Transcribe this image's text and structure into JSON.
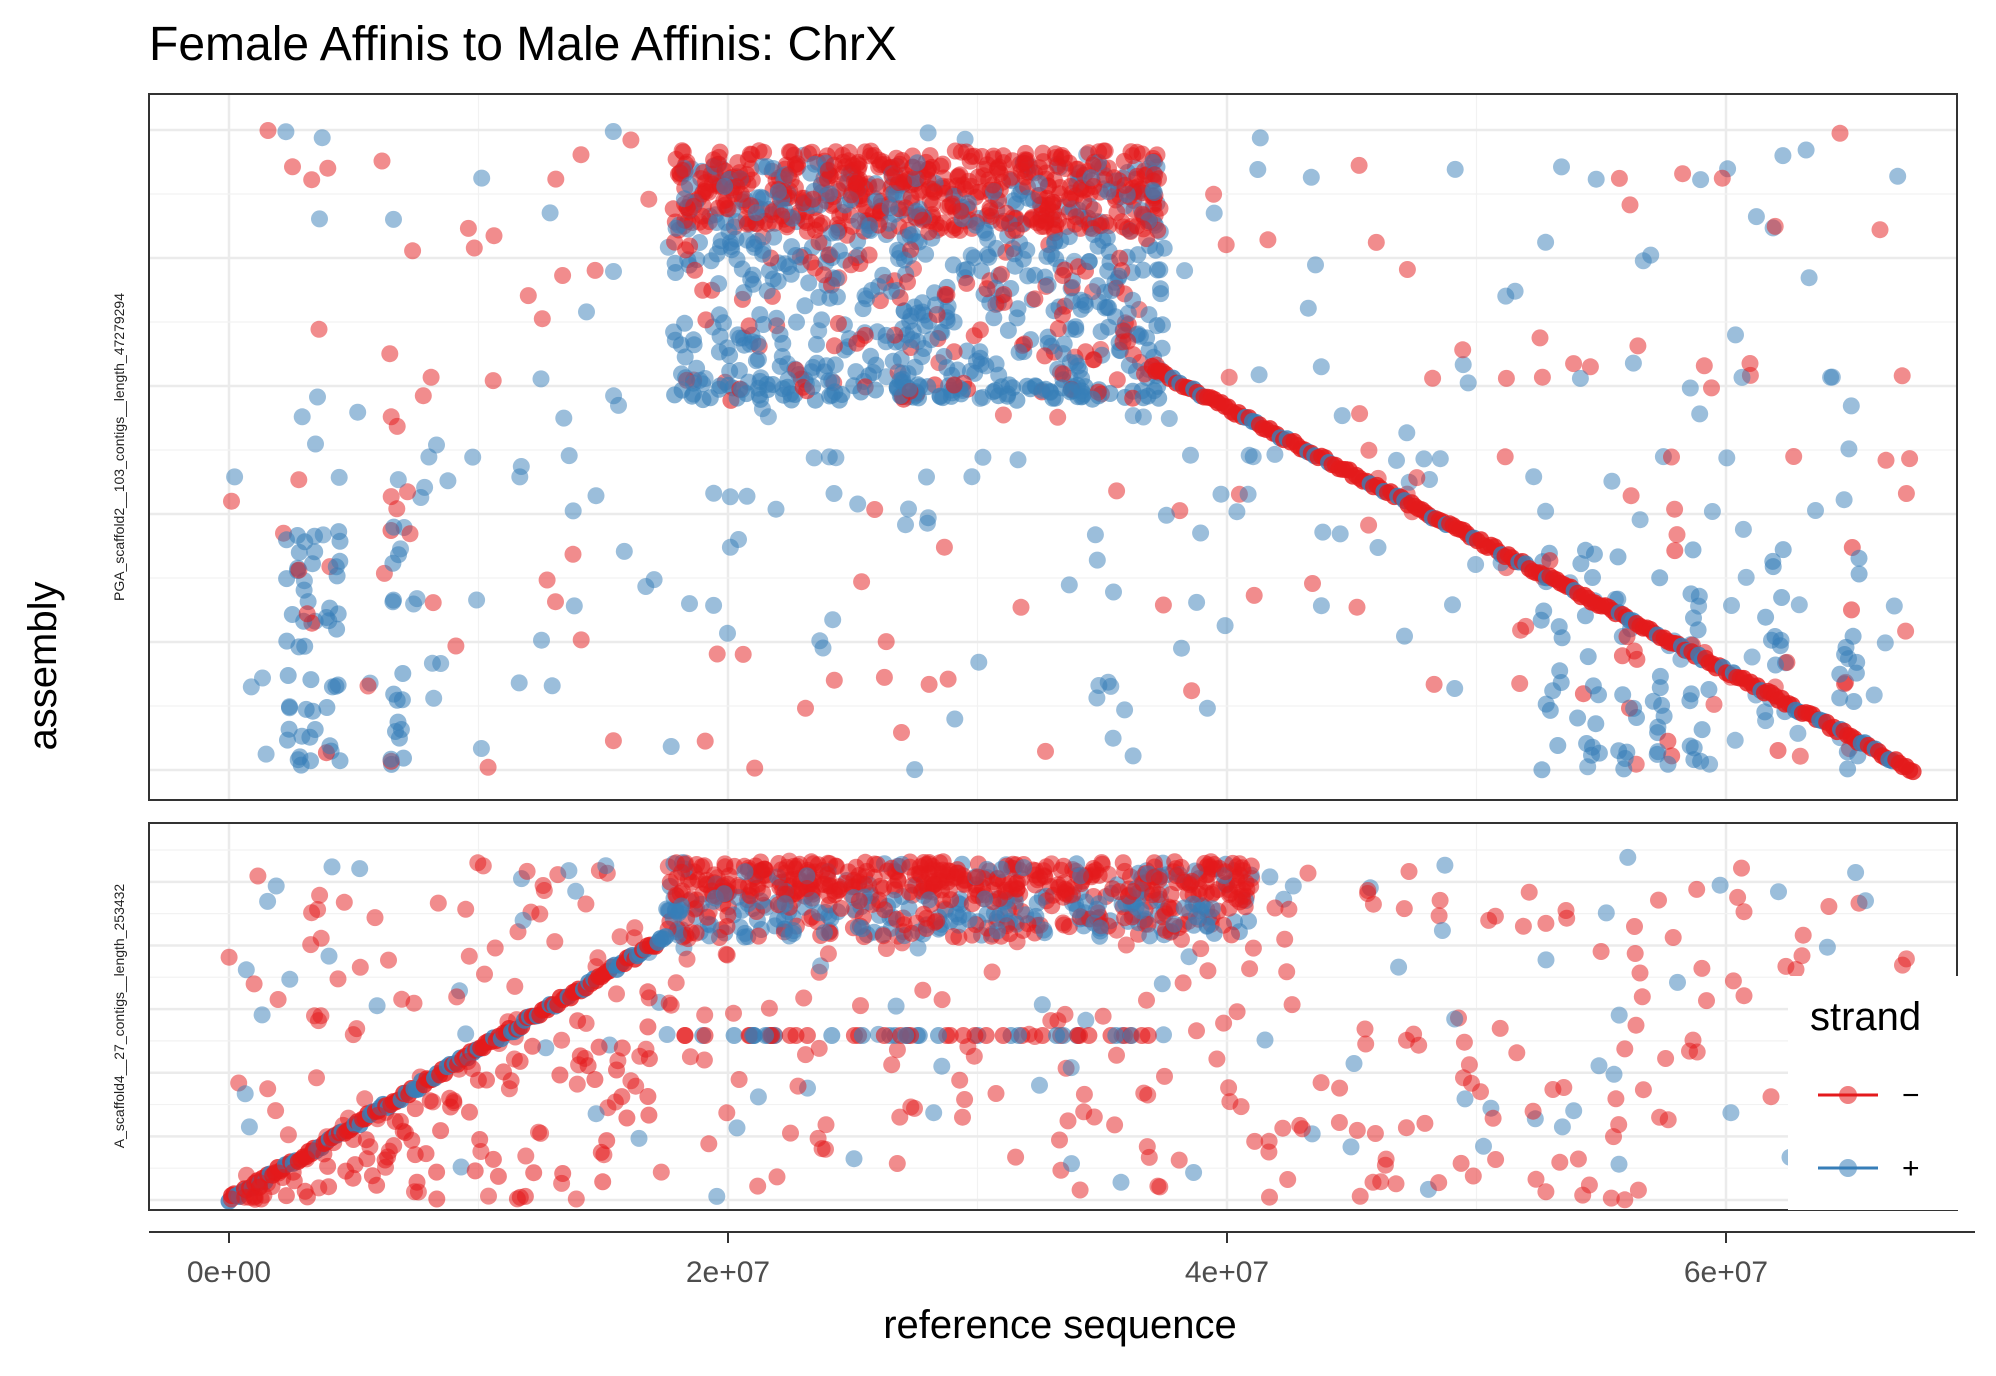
{
  "chart_data": {
    "type": "scatter",
    "title": "Female Affinis to Male Affinis: ChrX",
    "xlabel": "reference sequence",
    "ylabel": "assembly",
    "xlim": [
      0,
      67500000
    ],
    "x_ticks": [
      0,
      20000000,
      40000000,
      60000000
    ],
    "x_tick_labels": [
      "0e+00",
      "2e+07",
      "4e+07",
      "6e+07"
    ],
    "grid": true,
    "legend": {
      "title": "strand",
      "position": "right",
      "entries": [
        {
          "label": "−",
          "color": "#e41a1c"
        },
        {
          "label": "+",
          "color": "#377eb8"
        }
      ]
    },
    "colors": {
      "minus": "#e41a1c",
      "plus": "#377eb8"
    },
    "facets": [
      {
        "label": "PGA_scaffold2__103_contigs__length_47279294",
        "ylim": [
          0,
          47279294
        ],
        "alignment": {
          "x_start": 37000000,
          "y_start": 29700000,
          "x_end": 67500000,
          "y_end": 0,
          "strand": "-"
        },
        "dense_block": {
          "x_range": [
            17800000,
            37500000
          ],
          "y_range": [
            28500000,
            45800000
          ]
        }
      },
      {
        "label": "A_scaffold4__27_contigs__length_253432",
        "ylim": [
          0,
          253432
        ],
        "alignment": {
          "x_start": 0,
          "y_start": 0,
          "x_end": 17500000,
          "y_end": 190000,
          "strand": "+"
        },
        "dense_block": {
          "x_range": [
            17500000,
            41000000
          ],
          "y_range": [
            190000,
            245000
          ]
        }
      }
    ]
  }
}
